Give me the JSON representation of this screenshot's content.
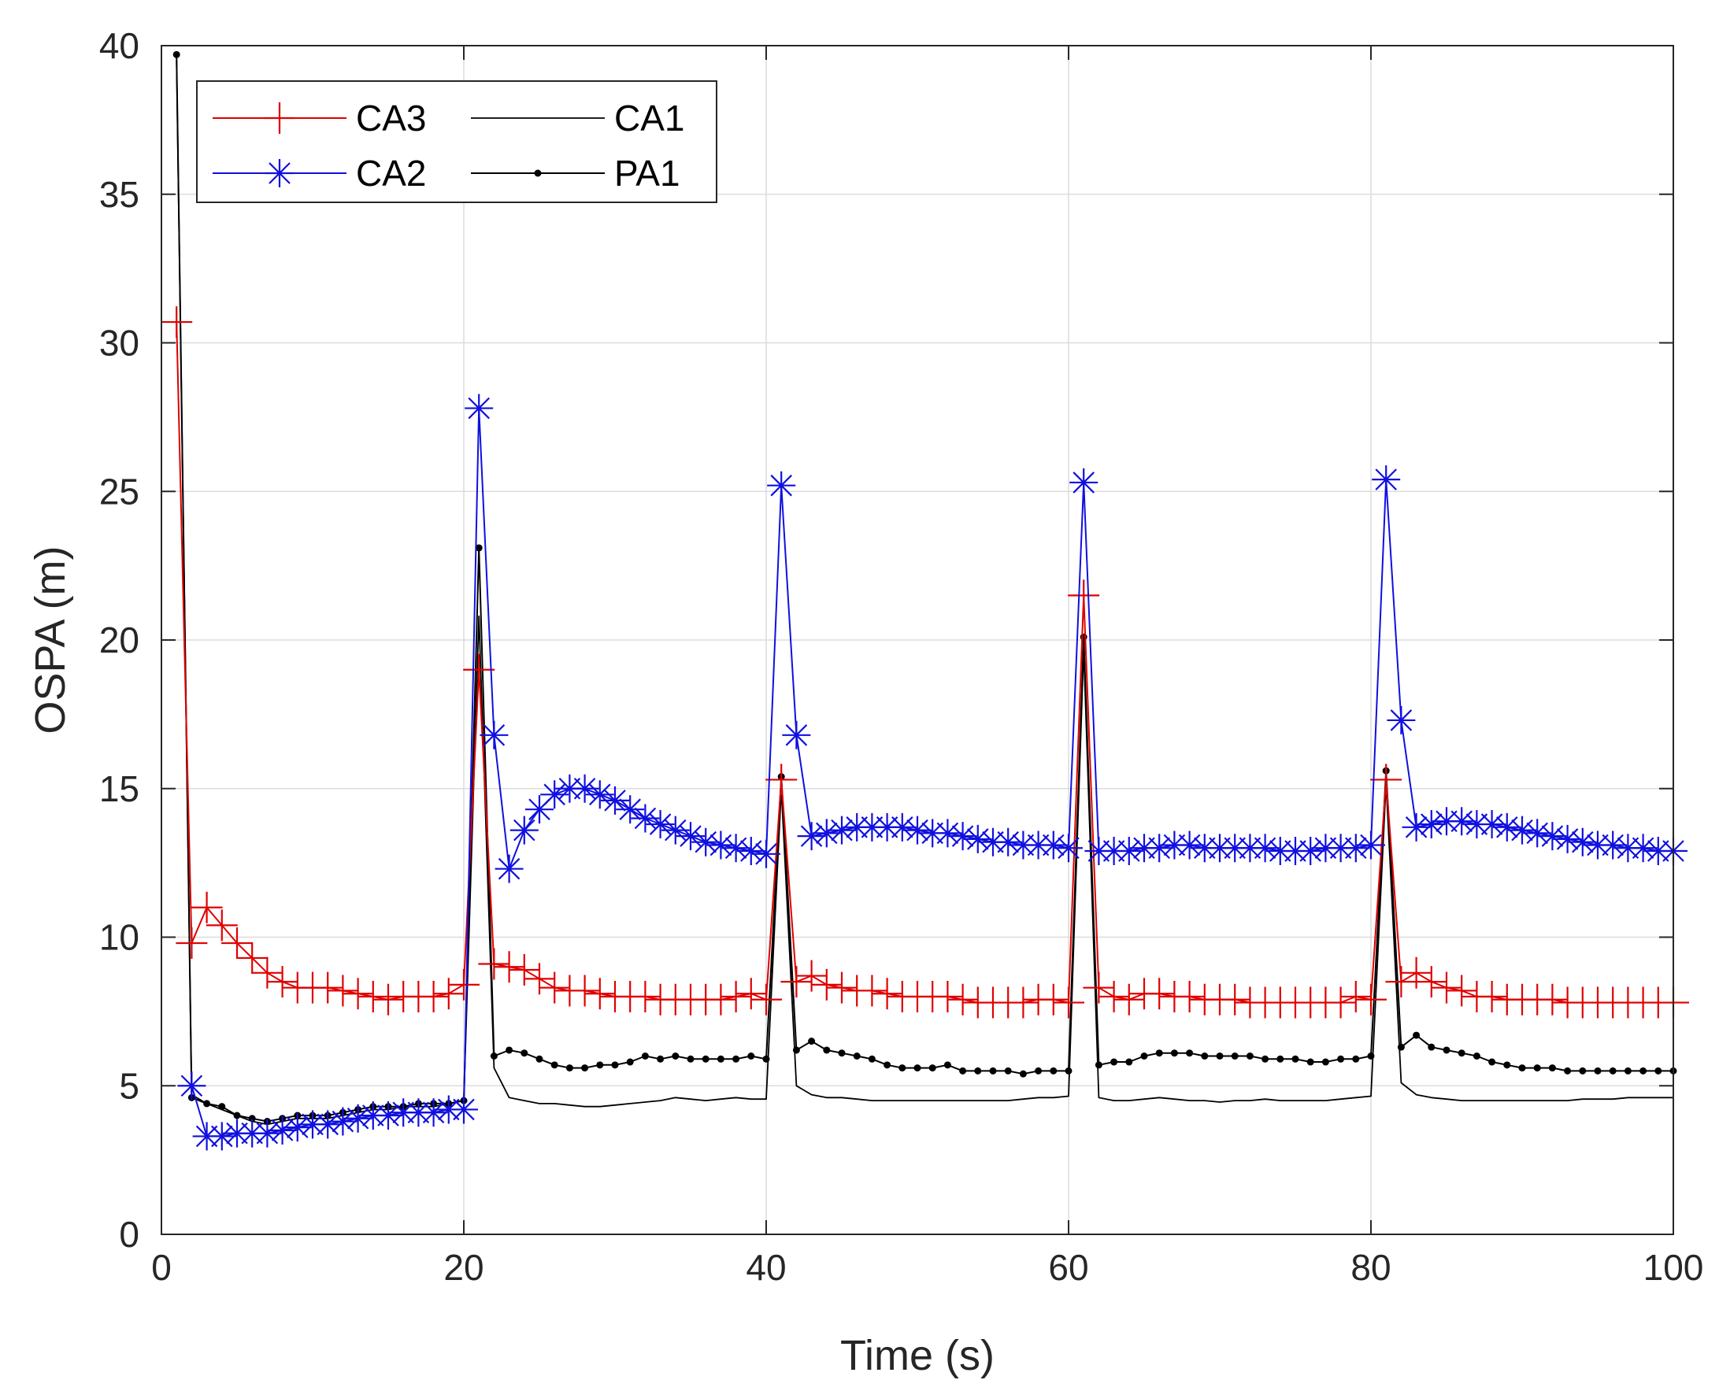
{
  "chart_data": {
    "type": "line",
    "title": "",
    "xlabel": "Time (s)",
    "ylabel": "OSPA (m)",
    "xlim": [
      0,
      100
    ],
    "ylim": [
      0,
      40
    ],
    "xticks": [
      "0",
      "20",
      "40",
      "60",
      "80",
      "100"
    ],
    "yticks": [
      "0",
      "5",
      "10",
      "15",
      "20",
      "25",
      "30",
      "35",
      "40"
    ],
    "xtick_values": [
      0,
      20,
      40,
      60,
      80,
      100
    ],
    "ytick_values": [
      0,
      5,
      10,
      15,
      20,
      25,
      30,
      35,
      40
    ],
    "grid": true,
    "legend_position": "top-left",
    "x": [
      1,
      2,
      3,
      4,
      5,
      6,
      7,
      8,
      9,
      10,
      11,
      12,
      13,
      14,
      15,
      16,
      17,
      18,
      19,
      20,
      21,
      22,
      23,
      24,
      25,
      26,
      27,
      28,
      29,
      30,
      31,
      32,
      33,
      34,
      35,
      36,
      37,
      38,
      39,
      40,
      41,
      42,
      43,
      44,
      45,
      46,
      47,
      48,
      49,
      50,
      51,
      52,
      53,
      54,
      55,
      56,
      57,
      58,
      59,
      60,
      61,
      62,
      63,
      64,
      65,
      66,
      67,
      68,
      69,
      70,
      71,
      72,
      73,
      74,
      75,
      76,
      77,
      78,
      79,
      80,
      81,
      82,
      83,
      84,
      85,
      86,
      87,
      88,
      89,
      90,
      91,
      92,
      93,
      94,
      95,
      96,
      97,
      98,
      99,
      100
    ],
    "series": [
      {
        "name": "CA3",
        "color": "#e00000",
        "marker": "plus",
        "values": [
          30.7,
          9.8,
          11.0,
          10.4,
          9.8,
          9.3,
          8.8,
          8.5,
          8.3,
          8.3,
          8.3,
          8.2,
          8.1,
          8.0,
          7.9,
          8.0,
          8.0,
          8.0,
          8.1,
          8.4,
          19.0,
          9.1,
          9.0,
          8.9,
          8.6,
          8.3,
          8.2,
          8.2,
          8.1,
          8.0,
          8.0,
          8.0,
          7.9,
          7.9,
          7.9,
          7.9,
          7.9,
          8.0,
          8.1,
          7.9,
          15.3,
          8.5,
          8.7,
          8.4,
          8.3,
          8.2,
          8.2,
          8.1,
          8.0,
          8.0,
          8.0,
          8.0,
          7.9,
          7.8,
          7.8,
          7.8,
          7.8,
          7.9,
          7.9,
          7.8,
          21.5,
          8.3,
          8.0,
          7.9,
          8.1,
          8.1,
          8.0,
          8.0,
          7.9,
          7.9,
          7.9,
          7.8,
          7.8,
          7.8,
          7.8,
          7.8,
          7.8,
          7.8,
          8.0,
          7.9,
          15.3,
          8.5,
          8.8,
          8.5,
          8.3,
          8.2,
          8.0,
          8.0,
          7.9,
          7.9,
          7.9,
          7.9,
          7.8,
          7.8,
          7.8,
          7.8,
          7.8,
          7.8,
          7.8,
          7.8
        ]
      },
      {
        "name": "CA1",
        "color": "#000000",
        "marker": "none",
        "values": [
          39.5,
          4.7,
          4.4,
          4.2,
          4.0,
          3.8,
          3.7,
          3.8,
          3.9,
          3.9,
          3.9,
          4.0,
          4.1,
          4.2,
          4.2,
          4.3,
          4.3,
          4.3,
          4.4,
          4.5,
          20.8,
          5.6,
          4.6,
          4.5,
          4.4,
          4.4,
          4.35,
          4.3,
          4.3,
          4.35,
          4.4,
          4.45,
          4.5,
          4.6,
          4.55,
          4.5,
          4.55,
          4.6,
          4.55,
          4.55,
          15.0,
          5.0,
          4.7,
          4.6,
          4.6,
          4.55,
          4.5,
          4.5,
          4.5,
          4.5,
          4.5,
          4.5,
          4.5,
          4.5,
          4.5,
          4.5,
          4.55,
          4.6,
          4.6,
          4.65,
          19.7,
          4.6,
          4.5,
          4.5,
          4.55,
          4.6,
          4.55,
          4.5,
          4.5,
          4.45,
          4.5,
          4.5,
          4.55,
          4.5,
          4.5,
          4.5,
          4.5,
          4.55,
          4.6,
          4.65,
          15.2,
          5.1,
          4.7,
          4.6,
          4.55,
          4.5,
          4.5,
          4.5,
          4.5,
          4.5,
          4.5,
          4.5,
          4.5,
          4.55,
          4.55,
          4.55,
          4.6,
          4.6,
          4.6,
          4.6
        ]
      },
      {
        "name": "CA2",
        "color": "#1010e0",
        "marker": "asterisk",
        "values": [
          null,
          5.0,
          3.3,
          3.3,
          3.4,
          3.4,
          3.4,
          3.5,
          3.6,
          3.7,
          3.7,
          3.8,
          3.9,
          4.0,
          4.0,
          4.1,
          4.1,
          4.1,
          4.2,
          4.2,
          27.8,
          16.8,
          12.3,
          13.6,
          14.3,
          14.8,
          15.0,
          15.0,
          14.8,
          14.6,
          14.3,
          14.0,
          13.8,
          13.6,
          13.4,
          13.2,
          13.1,
          13.0,
          12.9,
          12.8,
          25.2,
          16.8,
          13.4,
          13.5,
          13.6,
          13.7,
          13.7,
          13.7,
          13.7,
          13.6,
          13.5,
          13.5,
          13.4,
          13.3,
          13.2,
          13.2,
          13.1,
          13.1,
          13.1,
          13.0,
          25.3,
          12.9,
          12.9,
          12.9,
          13.0,
          13.0,
          13.1,
          13.1,
          13.0,
          13.0,
          13.0,
          13.0,
          13.0,
          12.9,
          12.9,
          12.9,
          13.0,
          13.0,
          13.0,
          13.1,
          25.4,
          17.3,
          13.7,
          13.8,
          13.9,
          13.9,
          13.8,
          13.8,
          13.7,
          13.6,
          13.5,
          13.4,
          13.3,
          13.2,
          13.1,
          13.1,
          13.0,
          13.0,
          12.9,
          12.9
        ]
      },
      {
        "name": "PA1",
        "color": "#000000",
        "marker": "dot",
        "values": [
          39.7,
          4.6,
          4.4,
          4.3,
          4.0,
          3.9,
          3.8,
          3.9,
          4.0,
          4.0,
          4.0,
          4.1,
          4.2,
          4.3,
          4.3,
          4.3,
          4.4,
          4.4,
          4.4,
          4.5,
          23.1,
          6.0,
          6.2,
          6.1,
          5.9,
          5.7,
          5.6,
          5.6,
          5.7,
          5.7,
          5.8,
          6.0,
          5.9,
          6.0,
          5.9,
          5.9,
          5.9,
          5.9,
          6.0,
          5.9,
          15.4,
          6.2,
          6.5,
          6.2,
          6.1,
          6.0,
          5.9,
          5.7,
          5.6,
          5.6,
          5.6,
          5.7,
          5.5,
          5.5,
          5.5,
          5.5,
          5.4,
          5.5,
          5.5,
          5.5,
          20.1,
          5.7,
          5.8,
          5.8,
          6.0,
          6.1,
          6.1,
          6.1,
          6.0,
          6.0,
          6.0,
          6.0,
          5.9,
          5.9,
          5.9,
          5.8,
          5.8,
          5.9,
          5.9,
          6.0,
          15.6,
          6.3,
          6.7,
          6.3,
          6.2,
          6.1,
          6.0,
          5.8,
          5.7,
          5.6,
          5.6,
          5.6,
          5.5,
          5.5,
          5.5,
          5.5,
          5.5,
          5.5,
          5.5,
          5.5
        ]
      }
    ]
  }
}
